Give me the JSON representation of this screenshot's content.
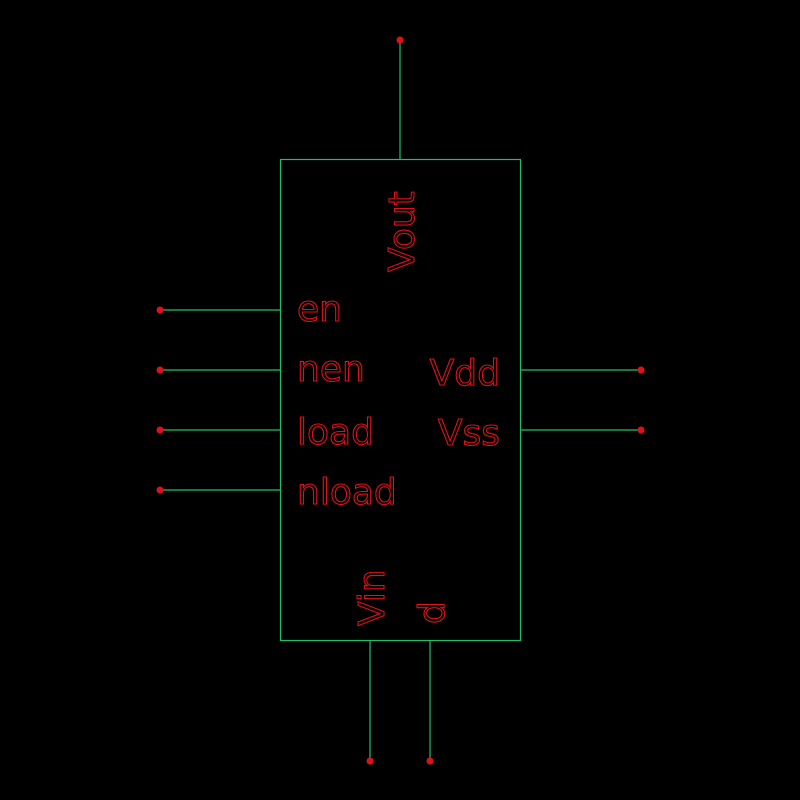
{
  "symbol": {
    "top_pin": "Vout",
    "left_pins": [
      "en",
      "nen",
      "load",
      "nload"
    ],
    "right_pins": [
      "Vdd",
      "Vss"
    ],
    "bottom_pins": [
      "Vin",
      "d"
    ]
  },
  "colors": {
    "background": "#000000",
    "wire": "#1fbf6a",
    "pin_and_text": "#e0101a"
  }
}
